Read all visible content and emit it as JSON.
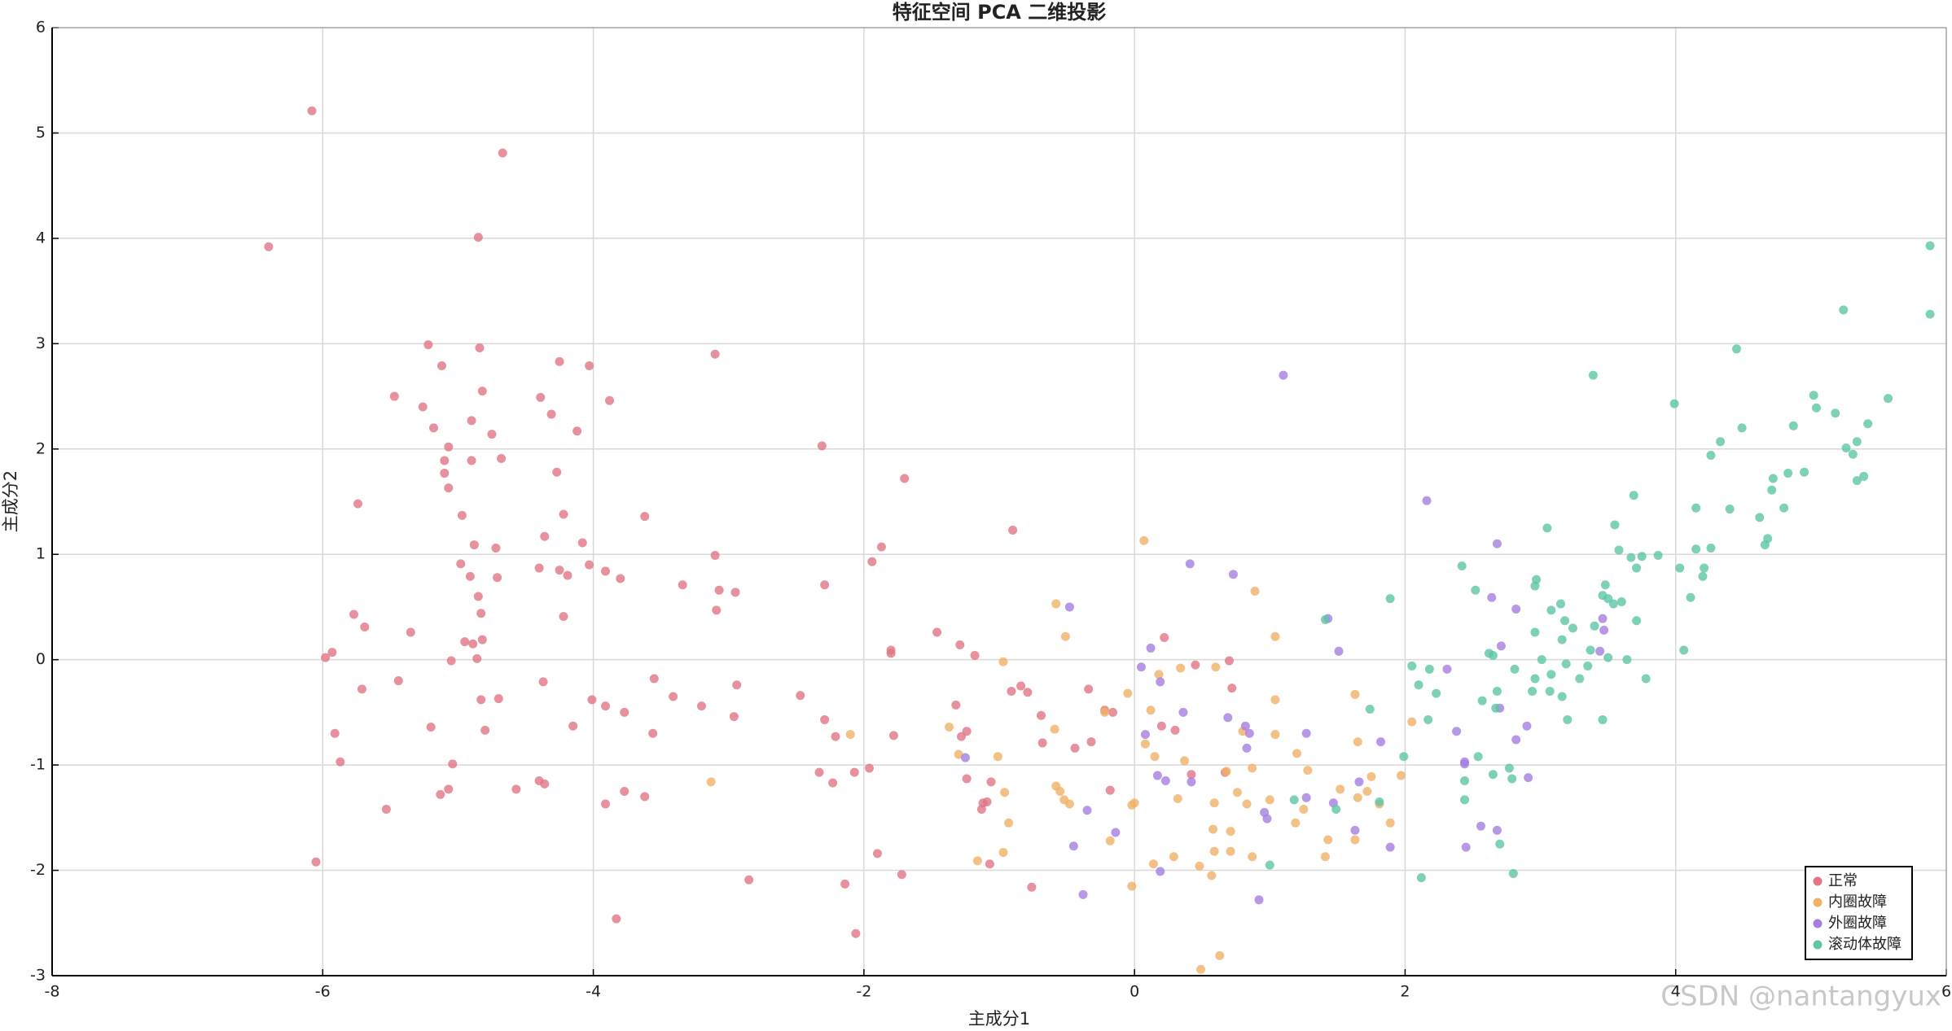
{
  "chart_data": {
    "type": "scatter",
    "title": "特征空间 PCA 二维投影",
    "x_label": "主成分1",
    "y_label": "主成分2",
    "watermark": "CSDN @nantangyux",
    "xlim": [
      -8,
      6
    ],
    "ylim": [
      -3,
      6
    ],
    "xticks": [
      -8,
      -6,
      -4,
      -2,
      0,
      2,
      4,
      6
    ],
    "yticks": [
      -3,
      -2,
      -1,
      0,
      1,
      2,
      3,
      4,
      5,
      6
    ],
    "grid": true,
    "legend": "lower right",
    "series": [
      {
        "name": "正常",
        "color": "#e07585",
        "x": [
          -6.4,
          -6.08,
          -4.67,
          -4.85,
          -5.22,
          -4.84,
          -5.12,
          -5.47,
          -5.26,
          -5.18,
          -4.82,
          -4.25,
          -4.03,
          -4.39,
          -4.31,
          -3.88,
          -4.9,
          -4.75,
          -4.12,
          -5.07,
          -5.1,
          -4.9,
          -4.68,
          -5.1,
          -5.07,
          -4.27,
          -5.74,
          -4.97,
          -4.22,
          -3.62,
          -3.1,
          -2.31,
          -4.88,
          -4.72,
          -4.36,
          -4.08,
          -3.1,
          -4.03,
          -4.98,
          -4.4,
          -4.25,
          -4.19,
          -3.91,
          -4.91,
          -4.71,
          -3.8,
          -3.34,
          -3.07,
          -2.95,
          -2.29,
          -1.87,
          -1.94,
          -1.7,
          -0.9,
          -4.85,
          -4.83,
          -5.77,
          -3.09,
          -4.22,
          -5.69,
          -5.35,
          -4.82,
          -4.95,
          -4.89,
          -4.86,
          -5.05,
          -5.93,
          -5.98,
          -1.46,
          -1.29,
          -1.8,
          -1.8,
          -1.18,
          -3.55,
          -2.94,
          -5.44,
          -4.37,
          -5.71,
          -4.01,
          -3.91,
          -3.41,
          -3.2,
          -3.77,
          -4.83,
          -4.7,
          -2.47,
          -1.32,
          -0.91,
          -0.84,
          -0.79,
          -0.34,
          -0.22,
          -0.16,
          -0.69,
          -2.29,
          -2.96,
          -5.2,
          -4.15,
          -3.56,
          -4.8,
          -5.91,
          -1.78,
          -2.21,
          -1.28,
          -1.24,
          -0.68,
          -0.44,
          -0.32,
          -5.87,
          -5.04,
          -1.96,
          -2.33,
          -2.07,
          -1.06,
          -0.18,
          -1.24,
          -2.23,
          -4.4,
          -4.36,
          -5.07,
          -4.57,
          -3.77,
          -5.13,
          -3.62,
          -3.91,
          -5.53,
          -1.12,
          -1.09,
          -1.13,
          -1.9,
          -1.72,
          -1.07,
          -0.76,
          -2.14,
          -2.85,
          -6.05,
          -3.83,
          -2.06,
          0.22,
          0.3,
          0.2,
          0.45,
          0.72,
          0.7,
          0.67,
          0.42
        ],
        "values": [
          3.92,
          5.21,
          4.81,
          4.01,
          2.99,
          2.96,
          2.79,
          2.5,
          2.4,
          2.2,
          2.55,
          2.83,
          2.79,
          2.49,
          2.33,
          2.46,
          2.27,
          2.14,
          2.17,
          2.02,
          1.89,
          1.89,
          1.91,
          1.77,
          1.63,
          1.78,
          1.48,
          1.37,
          1.38,
          1.36,
          2.9,
          2.03,
          1.09,
          1.06,
          1.17,
          1.11,
          0.99,
          0.9,
          0.91,
          0.87,
          0.85,
          0.8,
          0.84,
          0.79,
          0.78,
          0.77,
          0.71,
          0.66,
          0.64,
          0.71,
          1.07,
          0.93,
          1.72,
          1.23,
          0.6,
          0.44,
          0.43,
          0.47,
          0.41,
          0.31,
          0.26,
          0.19,
          0.17,
          0.15,
          0.01,
          -0.01,
          0.07,
          0.02,
          0.26,
          0.14,
          0.09,
          0.06,
          0.04,
          -0.18,
          -0.24,
          -0.2,
          -0.21,
          -0.28,
          -0.38,
          -0.44,
          -0.35,
          -0.44,
          -0.5,
          -0.38,
          -0.37,
          -0.34,
          -0.43,
          -0.3,
          -0.25,
          -0.31,
          -0.28,
          -0.48,
          -0.5,
          -0.53,
          -0.57,
          -0.54,
          -0.64,
          -0.63,
          -0.7,
          -0.67,
          -0.7,
          -0.72,
          -0.73,
          -0.73,
          -0.68,
          -0.79,
          -0.84,
          -0.78,
          -0.97,
          -0.99,
          -1.03,
          -1.07,
          -1.07,
          -1.16,
          -1.24,
          -1.13,
          -1.17,
          -1.15,
          -1.18,
          -1.23,
          -1.23,
          -1.25,
          -1.28,
          -1.3,
          -1.37,
          -1.42,
          -1.36,
          -1.35,
          -1.42,
          -1.84,
          -2.04,
          -1.94,
          -2.16,
          -2.13,
          -2.09,
          -1.92,
          -2.46,
          -2.6,
          0.21,
          -0.67,
          -0.63,
          -0.05,
          -0.27,
          -0.01,
          -1.07,
          -1.09
        ]
      },
      {
        "name": "内圈故障",
        "color": "#f0b266",
        "x": [
          0.07,
          -0.58,
          -0.51,
          -0.97,
          1.04,
          0.89,
          0.18,
          0.34,
          0.6,
          -0.05,
          1.04,
          1.63,
          -0.59,
          0.12,
          -0.22,
          -1.37,
          1.04,
          0.8,
          2.05,
          1.65,
          -1.3,
          -1.01,
          0.08,
          0.15,
          0.37,
          1.2,
          0.87,
          0.68,
          1.28,
          1.75,
          1.97,
          -0.96,
          -0.58,
          -0.55,
          1.0,
          1.52,
          1.65,
          1.72,
          0.0,
          -0.02,
          -0.52,
          -0.48,
          0.76,
          0.59,
          0.83,
          0.32,
          -0.93,
          1.19,
          1.25,
          1.81,
          1.89,
          -0.18,
          0.58,
          0.71,
          1.43,
          1.63,
          -0.97,
          0.59,
          0.71,
          0.87,
          1.41,
          0.29,
          -1.16,
          0.14,
          0.48,
          0.57,
          -0.02,
          0.63,
          0.49,
          -3.13,
          -2.1
        ],
        "values": [
          1.13,
          0.53,
          0.22,
          -0.02,
          0.22,
          0.65,
          -0.14,
          -0.08,
          -0.07,
          -0.32,
          -0.38,
          -0.33,
          -0.66,
          -0.48,
          -0.5,
          -0.64,
          -0.71,
          -0.68,
          -0.59,
          -0.78,
          -0.9,
          -0.92,
          -0.8,
          -0.92,
          -0.96,
          -0.89,
          -1.03,
          -1.06,
          -1.05,
          -1.11,
          -1.1,
          -1.26,
          -1.2,
          -1.25,
          -1.33,
          -1.23,
          -1.31,
          -1.25,
          -1.36,
          -1.38,
          -1.33,
          -1.37,
          -1.26,
          -1.36,
          -1.37,
          -1.32,
          -1.55,
          -1.55,
          -1.42,
          -1.37,
          -1.55,
          -1.72,
          -1.61,
          -1.63,
          -1.71,
          -1.71,
          -1.83,
          -1.82,
          -1.82,
          -1.87,
          -1.87,
          -1.87,
          -1.91,
          -1.94,
          -1.96,
          -2.05,
          -2.15,
          -2.81,
          -2.94,
          -1.16,
          -0.71
        ]
      },
      {
        "name": "外圈故障",
        "color": "#a57ee0",
        "x": [
          1.1,
          2.16,
          0.41,
          0.73,
          -0.48,
          0.12,
          1.43,
          1.51,
          0.05,
          0.19,
          0.36,
          0.69,
          0.82,
          0.85,
          1.27,
          1.82,
          -1.25,
          0.08,
          0.83,
          0.42,
          0.17,
          0.23,
          0.96,
          0.98,
          1.27,
          1.47,
          1.66,
          -0.35,
          -0.14,
          1.63,
          1.89,
          -0.45,
          0.19,
          -0.38,
          0.92,
          2.68,
          2.64,
          2.82,
          2.71,
          2.31,
          2.38,
          2.44,
          2.44,
          2.7,
          2.9,
          2.82,
          2.91,
          2.56,
          2.68,
          2.45,
          3.46,
          3.47,
          3.44
        ],
        "values": [
          2.7,
          1.51,
          0.91,
          0.81,
          0.5,
          0.11,
          0.39,
          0.08,
          -0.07,
          -0.21,
          -0.5,
          -0.55,
          -0.63,
          -0.7,
          -0.7,
          -0.78,
          -0.93,
          -0.71,
          -0.84,
          -1.16,
          -1.1,
          -1.15,
          -1.45,
          -1.51,
          -1.31,
          -1.36,
          -1.16,
          -1.43,
          -1.64,
          -1.62,
          -1.78,
          -1.77,
          -2.01,
          -2.23,
          -2.28,
          1.1,
          0.59,
          0.48,
          0.13,
          -0.09,
          -0.68,
          -0.97,
          -0.99,
          -0.46,
          -0.63,
          -0.76,
          -1.12,
          -1.58,
          -1.62,
          -1.78,
          0.39,
          0.28,
          0.08
        ]
      },
      {
        "name": "滚动体故障",
        "color": "#5cc6a6",
        "x": [
          5.88,
          5.88,
          5.24,
          4.45,
          3.39,
          5.57,
          5.02,
          5.18,
          5.04,
          5.42,
          3.99,
          4.49,
          4.33,
          4.87,
          5.34,
          5.26,
          5.31,
          4.26,
          4.83,
          4.95,
          4.72,
          4.71,
          5.39,
          5.34,
          4.8,
          4.15,
          4.4,
          4.62,
          3.69,
          3.55,
          3.05,
          4.68,
          4.66,
          4.26,
          4.15,
          3.58,
          3.75,
          3.87,
          3.67,
          3.71,
          4.03,
          4.21,
          4.2,
          2.42,
          2.97,
          2.96,
          2.52,
          3.48,
          3.46,
          4.11,
          3.5,
          3.54,
          3.6,
          3.15,
          3.08,
          1.89,
          1.41,
          3.4,
          3.18,
          3.71,
          4.06,
          3.24,
          2.96,
          3.16,
          2.62,
          2.65,
          3.5,
          3.01,
          2.81,
          2.96,
          3.19,
          3.35,
          3.37,
          3.64,
          3.08,
          3.29,
          3.78,
          2.05,
          2.18,
          2.1,
          2.23,
          2.68,
          2.57,
          1.74,
          3.07,
          3.16,
          2.94,
          2.17,
          3.2,
          3.46,
          2.67,
          1.99,
          2.54,
          2.65,
          2.77,
          2.79,
          2.44,
          1.18,
          1.81,
          2.44,
          1.49,
          2.7,
          1.0,
          2.8,
          2.12
        ],
        "values": [
          3.93,
          3.28,
          3.32,
          2.95,
          2.7,
          2.48,
          2.51,
          2.34,
          2.39,
          2.24,
          2.43,
          2.2,
          2.07,
          2.22,
          2.07,
          2.01,
          1.95,
          1.94,
          1.77,
          1.78,
          1.72,
          1.61,
          1.74,
          1.7,
          1.44,
          1.44,
          1.43,
          1.35,
          1.56,
          1.28,
          1.25,
          1.15,
          1.09,
          1.06,
          1.05,
          1.04,
          0.98,
          0.99,
          0.97,
          0.87,
          0.87,
          0.87,
          0.79,
          0.89,
          0.76,
          0.7,
          0.66,
          0.71,
          0.61,
          0.59,
          0.58,
          0.53,
          0.55,
          0.53,
          0.47,
          0.58,
          0.38,
          0.32,
          0.37,
          0.37,
          0.09,
          0.3,
          0.26,
          0.19,
          0.06,
          0.04,
          0.02,
          0.0,
          -0.09,
          -0.18,
          -0.04,
          -0.06,
          0.09,
          0.0,
          -0.14,
          -0.18,
          -0.18,
          -0.06,
          -0.09,
          -0.24,
          -0.32,
          -0.3,
          -0.39,
          -0.47,
          -0.3,
          -0.35,
          -0.3,
          -0.57,
          -0.57,
          -0.57,
          -0.46,
          -0.92,
          -0.92,
          -1.09,
          -1.03,
          -1.13,
          -1.15,
          -1.33,
          -1.35,
          -1.33,
          -1.42,
          -1.75,
          -1.95,
          -2.03,
          -2.07
        ]
      }
    ]
  }
}
